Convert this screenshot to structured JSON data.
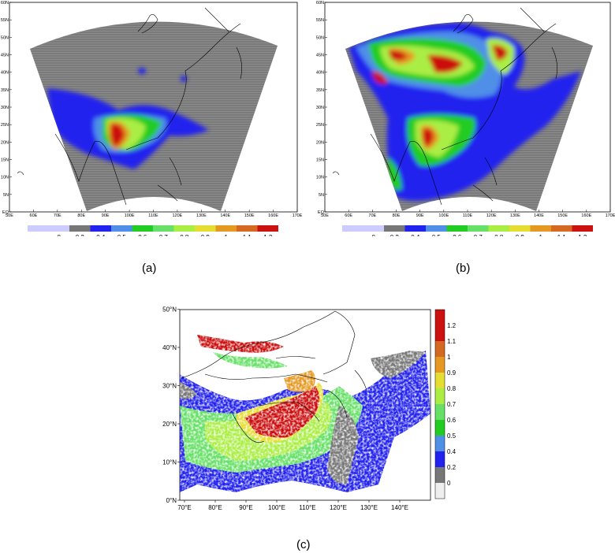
{
  "palette": [
    "#ccccff",
    "#777777",
    "#2222ee",
    "#4f8fe8",
    "#22cc22",
    "#66e066",
    "#aaee44",
    "#e6dd33",
    "#e69922",
    "#d46a22",
    "#cc1111"
  ],
  "colorbar_ab": [
    "0",
    "0.2",
    "0.4",
    "0.5",
    "0.6",
    "0.7",
    "0.8",
    "0.9",
    "1",
    "1.1",
    "1.2"
  ],
  "colorbar_c": [
    "0",
    "0.2",
    "0.4",
    "0.5",
    "0.6",
    "0.7",
    "0.8",
    "0.9",
    "1",
    "1.1",
    "1.2"
  ],
  "model_lon_ticks": [
    "50E",
    "60E",
    "70E",
    "80E",
    "90E",
    "100E",
    "110E",
    "120E",
    "130E",
    "140E",
    "150E",
    "160E",
    "170E"
  ],
  "model_lat_ticks": [
    "EQ",
    "5N",
    "10N",
    "15N",
    "20N",
    "25N",
    "30N",
    "35N",
    "40N",
    "45N",
    "50N",
    "55N",
    "60N"
  ],
  "obs_lon_ticks": [
    "70°E",
    "80°E",
    "90°E",
    "100°E",
    "110°E",
    "120°E",
    "130°E",
    "140°E"
  ],
  "obs_lat_ticks": [
    "0°N",
    "10°N",
    "20°N",
    "30°N",
    "40°N",
    "50°N"
  ],
  "captions": {
    "a": "(a)",
    "b": "(b)",
    "c": "(c)"
  }
}
